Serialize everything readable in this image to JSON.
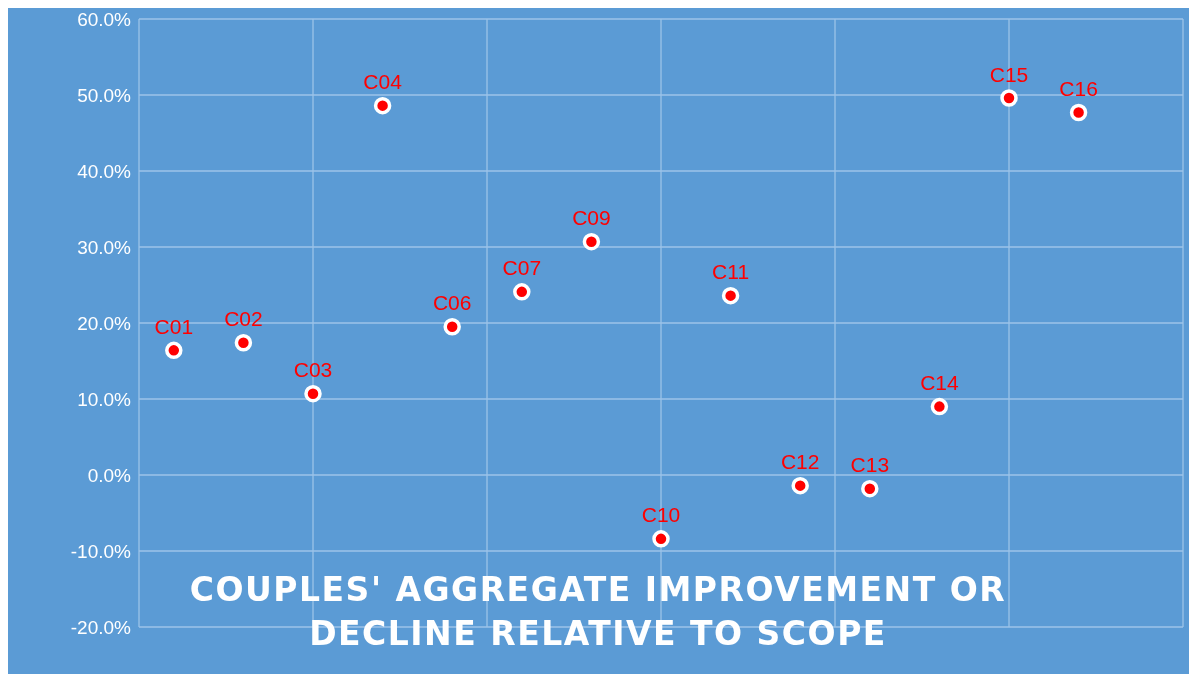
{
  "chart_data": {
    "type": "scatter",
    "title": "COUPLES' AGGREGATE IMPROVEMENT OR DECLINE RELATIVE TO SCOPE",
    "categories": [
      "C01",
      "C02",
      "C03",
      "C04",
      "C06",
      "C07",
      "C09",
      "C10",
      "C11",
      "C12",
      "C13",
      "C14",
      "C15",
      "C16"
    ],
    "series": [
      {
        "color": "#ff0000",
        "values": [
          16.4,
          17.4,
          10.7,
          48.6,
          19.5,
          24.1,
          30.7,
          -8.4,
          23.6,
          -1.4,
          -1.8,
          9.0,
          49.6,
          47.7
        ]
      }
    ],
    "ylim": [
      -20,
      60
    ],
    "yticks": [
      {
        "value": -20,
        "label": "-20.0%"
      },
      {
        "value": -10,
        "label": "-10.0%"
      },
      {
        "value": 0,
        "label": "0.0%"
      },
      {
        "value": 10,
        "label": "10.0%"
      },
      {
        "value": 20,
        "label": "20.0%"
      },
      {
        "value": 30,
        "label": "30.0%"
      },
      {
        "value": 40,
        "label": "40.0%"
      },
      {
        "value": 50,
        "label": "50.0%"
      },
      {
        "value": 60,
        "label": "60.0%"
      }
    ],
    "grid": true,
    "marker": "circle",
    "tick_labels": "y"
  }
}
